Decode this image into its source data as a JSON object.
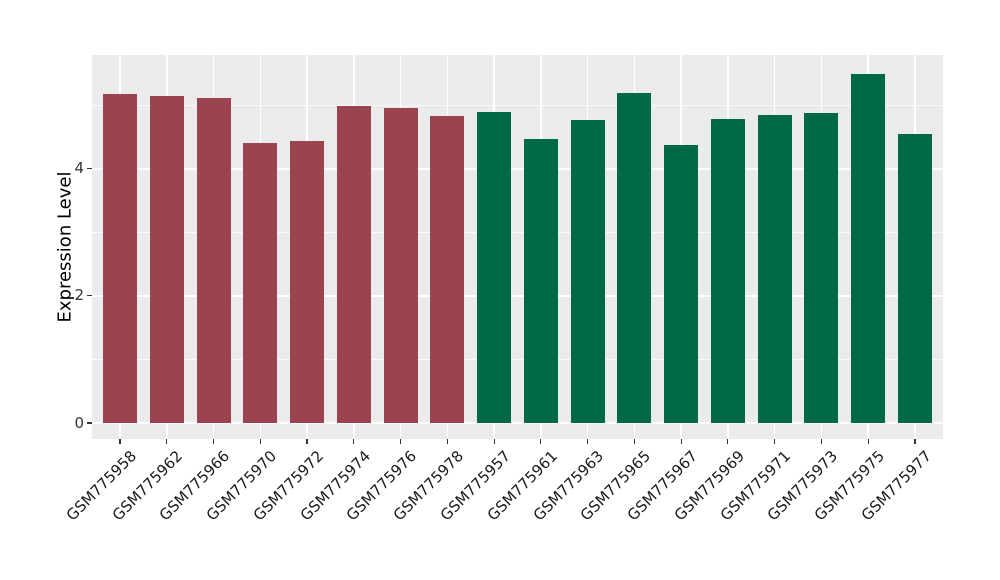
{
  "chart_data": {
    "type": "bar",
    "title": "",
    "xlabel": "",
    "ylabel": "Expression Level",
    "ylim": [
      0,
      5.8
    ],
    "yticks": [
      "0",
      "2",
      "4"
    ],
    "minor_gridlines_at": [
      1,
      3,
      5
    ],
    "grid": true,
    "legend_position": "none",
    "panel_background": "#ebebeb",
    "gridline_color": "#ffffff",
    "group_colors": [
      "#9a4450",
      "#026948"
    ],
    "bars": [
      {
        "label": "GSM775958",
        "value": 5.17,
        "group": 0
      },
      {
        "label": "GSM775962",
        "value": 5.14,
        "group": 0
      },
      {
        "label": "GSM775966",
        "value": 5.11,
        "group": 0
      },
      {
        "label": "GSM775970",
        "value": 4.4,
        "group": 0
      },
      {
        "label": "GSM775972",
        "value": 4.44,
        "group": 0
      },
      {
        "label": "GSM775974",
        "value": 4.99,
        "group": 0
      },
      {
        "label": "GSM775976",
        "value": 4.95,
        "group": 0
      },
      {
        "label": "GSM775978",
        "value": 4.83,
        "group": 0
      },
      {
        "label": "GSM775957",
        "value": 4.89,
        "group": 1
      },
      {
        "label": "GSM775961",
        "value": 4.46,
        "group": 1
      },
      {
        "label": "GSM775963",
        "value": 4.77,
        "group": 1
      },
      {
        "label": "GSM775965",
        "value": 5.19,
        "group": 1
      },
      {
        "label": "GSM775967",
        "value": 4.37,
        "group": 1
      },
      {
        "label": "GSM775969",
        "value": 4.78,
        "group": 1
      },
      {
        "label": "GSM775971",
        "value": 4.84,
        "group": 1
      },
      {
        "label": "GSM775973",
        "value": 4.87,
        "group": 1
      },
      {
        "label": "GSM775975",
        "value": 5.49,
        "group": 1
      },
      {
        "label": "GSM775977",
        "value": 4.54,
        "group": 1
      }
    ]
  }
}
